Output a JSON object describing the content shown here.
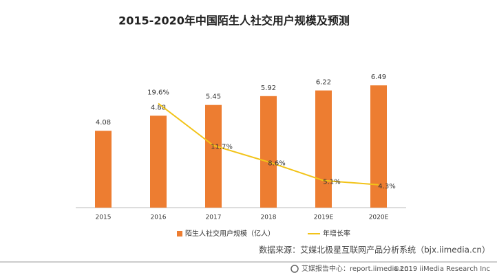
{
  "chart_data": {
    "type": "bar",
    "title": "2015-2020年中国陌生人社交用户规模及预测",
    "categories": [
      "2015",
      "2016",
      "2017",
      "2018",
      "2019E",
      "2020E"
    ],
    "series": [
      {
        "name": "陌生人社交用户规模（亿人）",
        "type": "bar",
        "color": "#ed7d31",
        "values": [
          4.08,
          4.88,
          5.45,
          5.92,
          6.22,
          6.49
        ]
      },
      {
        "name": "年增长率",
        "type": "line",
        "axis": "y2",
        "color": "#f2c318",
        "values": [
          null,
          19.6,
          11.7,
          8.6,
          5.1,
          4.3
        ],
        "value_labels": [
          null,
          "19.6%",
          "11.7%",
          "8.6%",
          "5.1%",
          "4.3%"
        ]
      }
    ],
    "ylim": [
      0,
      7.5
    ],
    "y2lim": [
      0,
      26.6
    ],
    "legend": "bottom"
  },
  "source": "数据来源：艾媒北极星互联网产品分析系统（bjx.iimedia.cn）",
  "footer": {
    "left": "艾媒报告中心：report.iimedia.cn",
    "right": "©2019  iiMedia Research Inc"
  }
}
